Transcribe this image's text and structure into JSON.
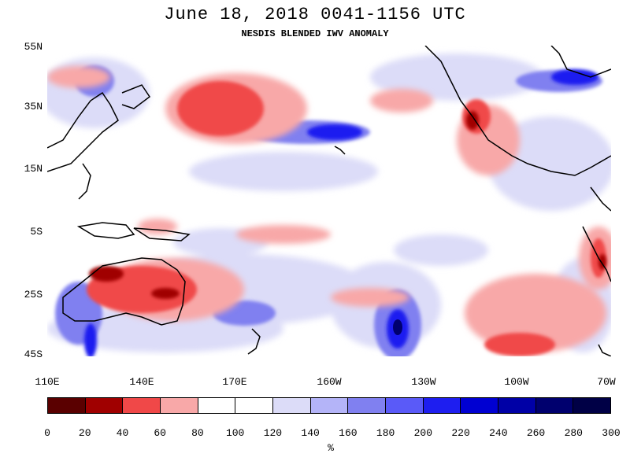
{
  "header": {
    "title": "June 18, 2018  0041-1156 UTC",
    "subtitle": "NESDIS BLENDED IWV ANOMALY"
  },
  "map": {
    "lat_labels": [
      "55N",
      "35N",
      "15N",
      "5S",
      "25S",
      "45S"
    ],
    "lon_labels": [
      "110E",
      "140E",
      "170E",
      "160W",
      "130W",
      "100W",
      "70W"
    ],
    "land_outline_color": "#000000"
  },
  "colorbar": {
    "ticks": [
      "0",
      "20",
      "40",
      "60",
      "80",
      "100",
      "120",
      "140",
      "160",
      "180",
      "200",
      "220",
      "240",
      "260",
      "280",
      "300"
    ],
    "colors": [
      "#5a0000",
      "#a00000",
      "#f04848",
      "#f8a8a8",
      "#ffffff",
      "#ffffff",
      "#dcdcf8",
      "#b4b4f8",
      "#8080f0",
      "#5a5af8",
      "#1e1ef0",
      "#0000d2",
      "#0000a6",
      "#00006e",
      "#000046"
    ],
    "unit": "%"
  }
}
